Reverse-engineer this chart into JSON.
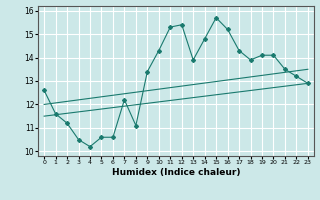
{
  "xlabel": "Humidex (Indice chaleur)",
  "background_color": "#cce8e8",
  "grid_color": "#ffffff",
  "line_color": "#1a7a6e",
  "xlim": [
    -0.5,
    23.5
  ],
  "ylim": [
    9.8,
    16.2
  ],
  "xticks": [
    0,
    1,
    2,
    3,
    4,
    5,
    6,
    7,
    8,
    9,
    10,
    11,
    12,
    13,
    14,
    15,
    16,
    17,
    18,
    19,
    20,
    21,
    22,
    23
  ],
  "yticks": [
    10,
    11,
    12,
    13,
    14,
    15,
    16
  ],
  "main_line_x": [
    0,
    1,
    2,
    3,
    4,
    5,
    6,
    7,
    8,
    9,
    10,
    11,
    12,
    13,
    14,
    15,
    16,
    17,
    18,
    19,
    20,
    21,
    22,
    23
  ],
  "main_line_y": [
    12.6,
    11.6,
    11.2,
    10.5,
    10.2,
    10.6,
    10.6,
    12.2,
    11.1,
    13.4,
    14.3,
    15.3,
    15.4,
    13.9,
    14.8,
    15.7,
    15.2,
    14.3,
    13.9,
    14.1,
    14.1,
    13.5,
    13.2,
    12.9
  ],
  "upper_line_x": [
    0,
    23
  ],
  "upper_line_y": [
    12.0,
    13.5
  ],
  "lower_line_x": [
    0,
    23
  ],
  "lower_line_y": [
    11.5,
    12.9
  ]
}
